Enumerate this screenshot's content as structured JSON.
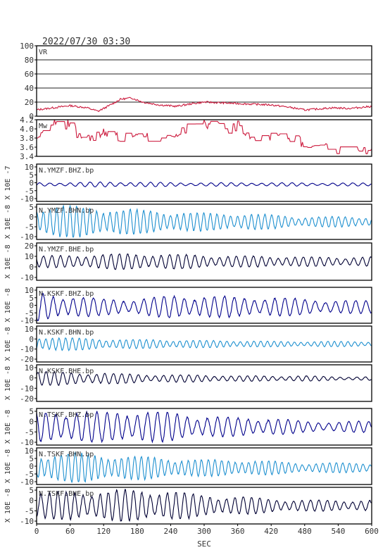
{
  "chart_data": {
    "type": "line",
    "title": "2022/07/30 03:30",
    "xlabel": "SEC",
    "xlim": [
      0,
      600
    ],
    "xticks": [
      "0",
      "60",
      "120",
      "180",
      "240",
      "300",
      "360",
      "420",
      "480",
      "540",
      "600"
    ],
    "grid": false,
    "panels": [
      {
        "id": "vr",
        "label": "VR",
        "ylim": [
          0,
          100
        ],
        "yticks": [
          "0",
          "20",
          "40",
          "60",
          "80",
          "100"
        ],
        "ylabel": "",
        "color": "#cc1a3d",
        "hgrid": [
          20,
          40,
          60,
          80
        ],
        "series": {
          "x": [
            0,
            30,
            60,
            90,
            110,
            130,
            150,
            170,
            190,
            220,
            250,
            280,
            300,
            330,
            360,
            390,
            420,
            450,
            480,
            500,
            530,
            560,
            600
          ],
          "y": [
            9,
            12,
            15,
            12,
            7,
            15,
            24,
            26,
            20,
            16,
            14,
            18,
            20,
            19,
            18,
            17,
            16,
            13,
            9,
            10,
            12,
            11,
            14
          ]
        }
      },
      {
        "id": "mw",
        "label": "Mw",
        "ylim": [
          3.4,
          4.2
        ],
        "yticks": [
          "3.4",
          "3.6",
          "3.8",
          "4.0",
          "4.2"
        ],
        "ylabel": "",
        "color": "#cc1a3d",
        "series": {
          "x": [
            0,
            20,
            30,
            40,
            60,
            80,
            100,
            120,
            140,
            180,
            220,
            240,
            260,
            280,
            300,
            330,
            350,
            360,
            380,
            420,
            440,
            460,
            480,
            500,
            530,
            560,
            600
          ],
          "y": [
            3.8,
            4.05,
            4.15,
            4.1,
            4.1,
            3.8,
            3.85,
            3.9,
            3.85,
            3.8,
            3.85,
            3.8,
            3.95,
            4.05,
            4.1,
            4.05,
            4.0,
            4.1,
            3.75,
            3.8,
            3.8,
            3.75,
            3.7,
            3.65,
            3.55,
            3.5,
            3.55
          ]
        }
      },
      {
        "id": "p1",
        "label": "N.YMZF.BHZ.bp",
        "ylabel": "X 10E -7",
        "ylim": [
          -10,
          12
        ],
        "yticks": [
          "-10",
          "-5",
          "0",
          "5",
          "10"
        ],
        "color": "#00008b",
        "series": {
          "x": [
            0,
            60,
            120,
            180,
            240,
            300,
            360,
            420,
            480,
            540,
            600
          ],
          "y": [
            1,
            1.2,
            1.5,
            1.4,
            1.2,
            1.0,
            1.1,
            1.0,
            1.0,
            0.9,
            0.9
          ]
        }
      },
      {
        "id": "p2",
        "label": "N.YMZF.BHN.bp",
        "ylabel": "X 10E -8",
        "ylim": [
          -10,
          10
        ],
        "yticks": [
          "-10",
          "-5",
          "0",
          "5"
        ],
        "color": "#1e90d0",
        "series": {
          "x": [
            0,
            60,
            120,
            180,
            240,
            300,
            360,
            420,
            480,
            540,
            600
          ],
          "y": [
            9,
            9,
            8,
            7,
            6,
            5,
            5,
            4,
            3,
            3,
            3
          ]
        }
      },
      {
        "id": "p3",
        "label": "N.YMZF.BHE.bp",
        "ylabel": "X 10E -8",
        "ylim": [
          -20,
          20
        ],
        "yticks": [
          "-10",
          "0",
          "10",
          "20"
        ],
        "color": "#000033",
        "series": {
          "x": [
            0,
            60,
            120,
            180,
            240,
            300,
            360,
            420,
            480,
            540,
            600
          ],
          "y": [
            6,
            7,
            8,
            9,
            8,
            7,
            6,
            6,
            5,
            5,
            5
          ]
        }
      },
      {
        "id": "p4",
        "label": "N.KSKF.BHZ.bp",
        "ylabel": "X 10E -8",
        "ylim": [
          -10,
          12
        ],
        "yticks": [
          "-10",
          "-5",
          "0",
          "5",
          "10"
        ],
        "color": "#00008b",
        "series": {
          "x": [
            0,
            60,
            120,
            180,
            240,
            300,
            360,
            420,
            480,
            540,
            600
          ],
          "y": [
            9,
            7,
            5,
            5,
            7,
            7,
            6,
            6,
            5,
            4,
            4
          ]
        }
      },
      {
        "id": "p5",
        "label": "N.KSKF.BHN.bp",
        "ylabel": "X 10E -8",
        "ylim": [
          -20,
          20
        ],
        "yticks": [
          "-20",
          "-10",
          "0",
          "10"
        ],
        "color": "#1e90d0",
        "series": {
          "x": [
            0,
            60,
            120,
            180,
            240,
            300,
            360,
            420,
            480,
            540,
            600
          ],
          "y": [
            9,
            7,
            6,
            5,
            5,
            4,
            4,
            3,
            3,
            3,
            3
          ]
        }
      },
      {
        "id": "p6",
        "label": "N.KSKF.BHE.bp",
        "ylabel": "X 10E -8",
        "ylim": [
          -25,
          15
        ],
        "yticks": [
          "-20",
          "-10",
          "0",
          "10"
        ],
        "color": "#000033",
        "series": {
          "x": [
            0,
            60,
            120,
            180,
            240,
            300,
            360,
            420,
            480,
            540,
            600
          ],
          "y": [
            8,
            7,
            6,
            5,
            4,
            4,
            3,
            3,
            3,
            2,
            2
          ]
        }
      },
      {
        "id": "p7",
        "label": "N.TSKF.BHZ.bp",
        "ylabel": "X 10E -8",
        "ylim": [
          -10,
          10
        ],
        "yticks": [
          "-10",
          "-5",
          "0",
          "5"
        ],
        "color": "#00008b",
        "series": {
          "x": [
            0,
            60,
            120,
            180,
            240,
            300,
            360,
            420,
            480,
            540,
            600
          ],
          "y": [
            8,
            9,
            8,
            9,
            8,
            6,
            5,
            5,
            3,
            3,
            3
          ]
        }
      },
      {
        "id": "p8",
        "label": "N.TSKF.BHN.bp",
        "ylabel": "X 10E -8",
        "ylim": [
          -10,
          12
        ],
        "yticks": [
          "-10",
          "-5",
          "0",
          "5",
          "10"
        ],
        "color": "#1e90d0",
        "series": {
          "x": [
            0,
            60,
            120,
            180,
            240,
            300,
            360,
            420,
            480,
            540,
            600
          ],
          "y": [
            8,
            9,
            8,
            7,
            6,
            5,
            5,
            4,
            3,
            3,
            3
          ]
        }
      },
      {
        "id": "p9",
        "label": "N.TSKF.BHE.bp",
        "ylabel": "X 10E -8",
        "ylim": [
          -10,
          10
        ],
        "yticks": [
          "-10",
          "-5",
          "0",
          "5"
        ],
        "color": "#000033",
        "series": {
          "x": [
            0,
            60,
            120,
            180,
            240,
            300,
            360,
            420,
            480,
            540,
            600
          ],
          "y": [
            7,
            8,
            8,
            9,
            8,
            6,
            5,
            4,
            3,
            3,
            3
          ]
        }
      }
    ]
  }
}
